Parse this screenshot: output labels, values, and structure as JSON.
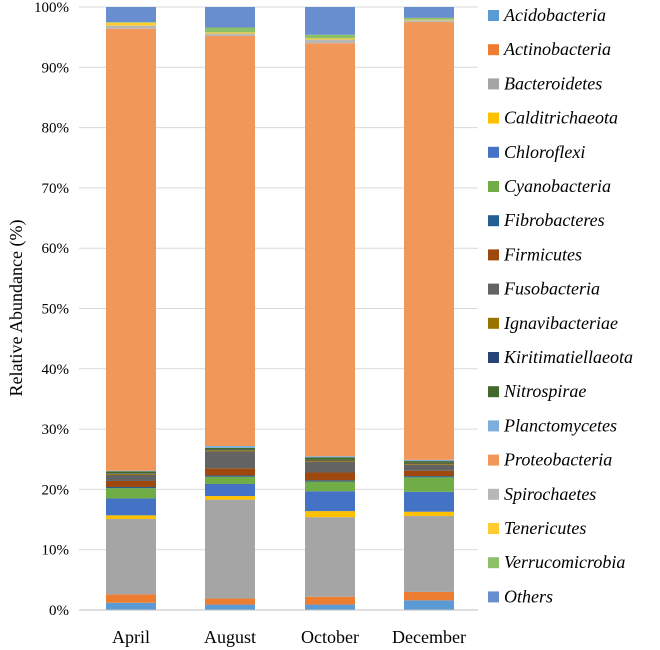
{
  "chart_data": {
    "type": "bar",
    "stacked": true,
    "percent": true,
    "title": "",
    "xlabel": "",
    "ylabel": "Relative Abundance (%)",
    "ylim": [
      0,
      100
    ],
    "yticks": [
      "0%",
      "10%",
      "20%",
      "30%",
      "40%",
      "50%",
      "60%",
      "70%",
      "80%",
      "90%",
      "100%"
    ],
    "grid": true,
    "legend": "right",
    "categories": [
      "April",
      "August",
      "October",
      "December"
    ],
    "series": [
      {
        "name": "Acidobacteria",
        "color": "#5b9bd5",
        "values": [
          1.2,
          0.9,
          0.9,
          1.6
        ]
      },
      {
        "name": "Actinobacteria",
        "color": "#ed7d31",
        "values": [
          1.4,
          1.0,
          1.3,
          1.4
        ]
      },
      {
        "name": "Bacteroidetes",
        "color": "#a5a5a5",
        "values": [
          12.5,
          16.4,
          13.2,
          12.6
        ]
      },
      {
        "name": "Calditrichaeota",
        "color": "#ffc000",
        "values": [
          0.6,
          0.6,
          1.0,
          0.7
        ]
      },
      {
        "name": "Chloroflexi",
        "color": "#4472c4",
        "values": [
          2.8,
          2.0,
          3.3,
          3.3
        ]
      },
      {
        "name": "Cyanobacteria",
        "color": "#70ad47",
        "values": [
          1.7,
          1.2,
          1.6,
          2.4
        ]
      },
      {
        "name": "Fibrobacteres",
        "color": "#255e91",
        "values": [
          0.2,
          0.2,
          0.2,
          0.2
        ]
      },
      {
        "name": "Firmicutes",
        "color": "#9e480e",
        "values": [
          1.0,
          1.2,
          1.3,
          0.9
        ]
      },
      {
        "name": "Fusobacteria",
        "color": "#636363",
        "values": [
          1.0,
          2.8,
          1.8,
          1.0
        ]
      },
      {
        "name": "Ignavibacteriae",
        "color": "#997300",
        "values": [
          0.2,
          0.2,
          0.2,
          0.2
        ]
      },
      {
        "name": "Kiritimatiellaeota",
        "color": "#264478",
        "values": [
          0.1,
          0.1,
          0.1,
          0.1
        ]
      },
      {
        "name": "Nitrospirae",
        "color": "#43682b",
        "values": [
          0.3,
          0.3,
          0.4,
          0.3
        ]
      },
      {
        "name": "Planctomycetes",
        "color": "#7cafdd",
        "values": [
          0.1,
          0.3,
          0.2,
          0.2
        ]
      },
      {
        "name": "Proteobacteria",
        "color": "#f1975a",
        "values": [
          73.3,
          68.0,
          68.5,
          72.6
        ]
      },
      {
        "name": "Spirochaetes",
        "color": "#b7b7b7",
        "values": [
          0.5,
          0.4,
          0.6,
          0.3
        ]
      },
      {
        "name": "Tenericutes",
        "color": "#ffcd33",
        "values": [
          0.5,
          0.2,
          0.2,
          0.1
        ]
      },
      {
        "name": "Verrucomicrobia",
        "color": "#8cc168",
        "values": [
          0.1,
          0.8,
          0.6,
          0.3
        ]
      },
      {
        "name": "Others",
        "color": "#698ed0",
        "values": [
          2.5,
          3.4,
          4.6,
          1.8
        ]
      }
    ]
  }
}
